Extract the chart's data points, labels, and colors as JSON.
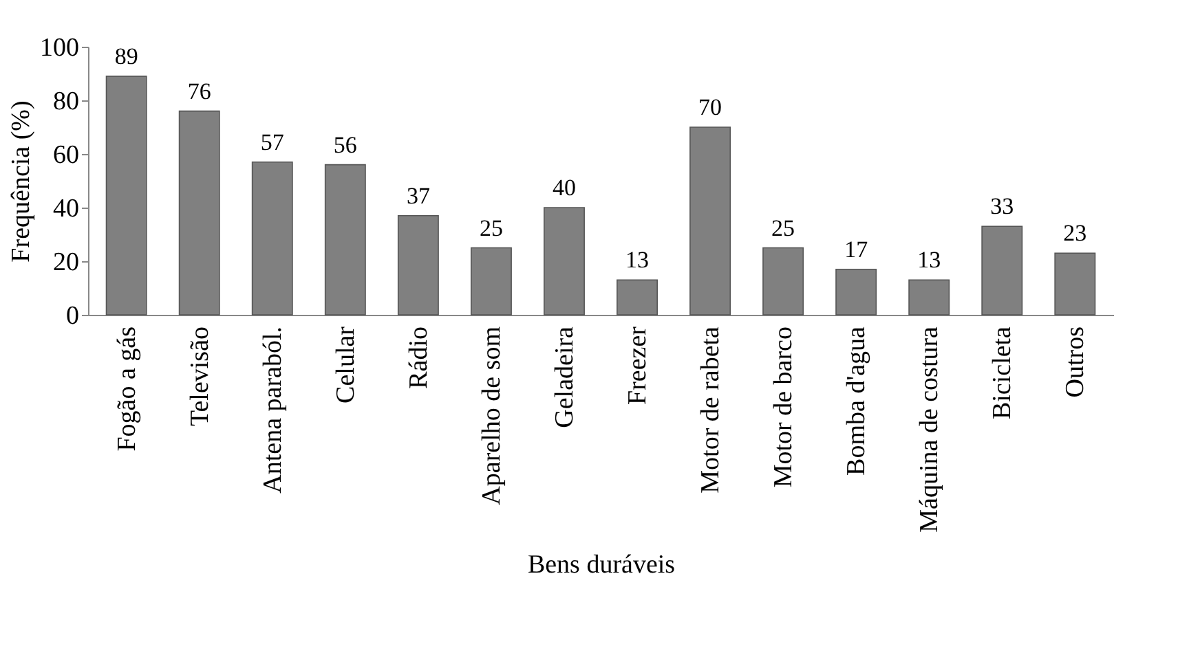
{
  "chart_data": {
    "type": "bar",
    "xlabel": "Bens duráveis",
    "ylabel": "Frequência (%)",
    "categories": [
      "Fogão a gás",
      "Televisão",
      "Antena paraból.",
      "Celular",
      "Rádio",
      "Aparelho de som",
      "Geladeira",
      "Freezer",
      "Motor de rabeta",
      "Motor de barco",
      "Bomba d'agua",
      "Máquina de costura",
      "Bicicleta",
      "Outros"
    ],
    "values": [
      89,
      76,
      57,
      56,
      37,
      25,
      40,
      13,
      70,
      25,
      17,
      13,
      33,
      23
    ],
    "color": "#808080",
    "ylim": [
      0,
      100
    ],
    "yticks": [
      0,
      20,
      40,
      60,
      80,
      100
    ],
    "grid": false,
    "data_labels": true
  }
}
